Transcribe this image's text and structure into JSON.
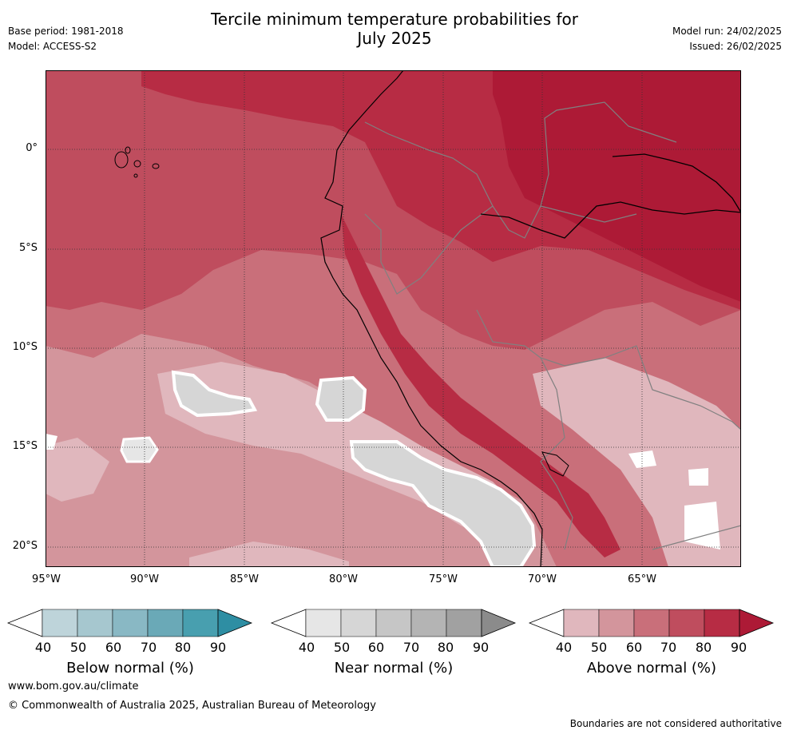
{
  "header": {
    "title_line1": "Tercile minimum temperature probabilities for",
    "title_line2": "July 2025",
    "base_period": "Base period: 1981-2018",
    "model": "Model: ACCESS-S2",
    "model_run": "Model run: 24/02/2025",
    "issued": "Issued: 26/02/2025"
  },
  "map": {
    "lat_labels": [
      "0°",
      "5°S",
      "10°S",
      "15°S",
      "20°S"
    ],
    "lon_labels": [
      "95°W",
      "90°W",
      "85°W",
      "80°W",
      "75°W",
      "70°W",
      "65°W"
    ],
    "lon_range": [
      -95,
      -60
    ],
    "lat_range": [
      -21,
      4
    ]
  },
  "colorbars": [
    {
      "title": "Below normal (%)",
      "ticks": [
        "40",
        "50",
        "60",
        "70",
        "80",
        "90"
      ],
      "colors": [
        "#ffffff",
        "#bed4da",
        "#a6c7cf",
        "#89b8c4",
        "#6aa9b7",
        "#489faf",
        "#2e8ea3"
      ]
    },
    {
      "title": "Near normal (%)",
      "ticks": [
        "40",
        "50",
        "60",
        "70",
        "80",
        "90"
      ],
      "colors": [
        "#ffffff",
        "#e6e6e6",
        "#d6d6d6",
        "#c6c6c6",
        "#b4b4b4",
        "#a1a1a1",
        "#8b8b8b"
      ]
    },
    {
      "title": "Above normal (%)",
      "ticks": [
        "40",
        "50",
        "60",
        "70",
        "80",
        "90"
      ],
      "colors": [
        "#ffffff",
        "#e0b7bd",
        "#d3959c",
        "#c96f7a",
        "#bf4d5e",
        "#b72c44",
        "#ad1a36"
      ]
    }
  ],
  "footer": {
    "website": "www.bom.gov.au/climate",
    "copyright": "© Commonwealth of Australia 2025, Australian Bureau of Meteorology",
    "disclaimer": "Boundaries are not considered authoritative"
  }
}
